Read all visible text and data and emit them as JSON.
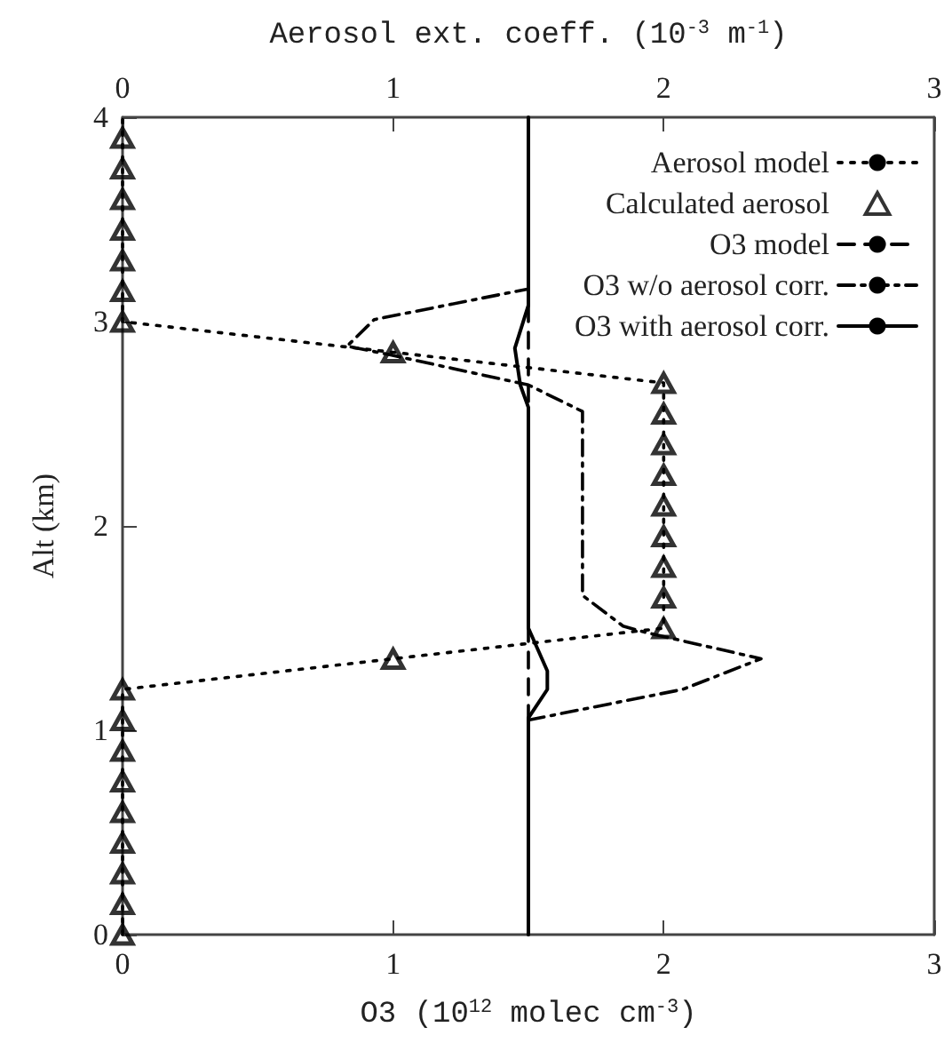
{
  "chart_data": {
    "type": "line",
    "xlabel": "O3 (10$^{12}$ molec cm$^{-3}$)",
    "x2label": "Aerosol ext. coeff. (10$^{-3}$ m$^{-1}$)",
    "ylabel": "Alt (km)",
    "xlim": [
      0,
      3
    ],
    "xticks": [
      0,
      1,
      2,
      3
    ],
    "x2lim": [
      0,
      3
    ],
    "x2ticks": [
      0,
      1,
      2,
      3
    ],
    "ylim": [
      0,
      4
    ],
    "yticks": [
      0,
      1,
      2,
      3,
      4
    ],
    "grid": false,
    "legend": "top right",
    "series": [
      {
        "name": "Aerosol model",
        "type": "line",
        "axis": "x2",
        "color": "#000000",
        "line_style": "dotted",
        "marker": "none",
        "x": [
          0,
          0,
          1,
          2,
          2,
          1,
          0,
          0
        ],
        "values": [
          0,
          1.2,
          1.35,
          1.5,
          2.7,
          2.85,
          3.0,
          4.0
        ]
      },
      {
        "name": "Calculated aerosol",
        "type": "scatter",
        "axis": "x2",
        "color": "#000000",
        "marker": "triangle",
        "x": [
          0,
          0,
          0,
          0,
          0,
          0,
          0,
          0,
          0,
          1,
          2,
          2,
          2,
          2,
          2,
          2,
          2,
          2,
          2,
          1,
          0,
          0,
          0,
          0,
          0,
          0,
          0
        ],
        "values": [
          0,
          0.15,
          0.3,
          0.45,
          0.6,
          0.75,
          0.9,
          1.05,
          1.2,
          1.35,
          1.5,
          1.65,
          1.8,
          1.95,
          2.1,
          2.25,
          2.4,
          2.55,
          2.7,
          2.85,
          3.0,
          3.15,
          3.3,
          3.45,
          3.6,
          3.75,
          3.9
        ]
      },
      {
        "name": "O3 model",
        "type": "line",
        "color": "#000000",
        "line_style": "dashed",
        "marker": "none",
        "x": [
          1.5,
          1.5
        ],
        "values": [
          0,
          4
        ]
      },
      {
        "name": "O3 w/o aerosol corr.",
        "type": "line",
        "color": "#000000",
        "line_style": "dashdot",
        "marker": "none",
        "x": [
          1.5,
          2.07,
          2.36,
          1.93,
          1.85,
          1.7,
          1.7,
          1.5,
          0.98,
          0.83,
          0.93,
          1.5
        ],
        "values": [
          1.05,
          1.2,
          1.35,
          1.48,
          1.51,
          1.66,
          2.56,
          2.69,
          2.84,
          2.88,
          3.01,
          3.16
        ]
      },
      {
        "name": "O3 with aerosol corr.",
        "type": "line",
        "color": "#000000",
        "line_style": "solid",
        "marker": "none",
        "x": [
          1.5,
          1.5,
          1.57,
          1.57,
          1.5,
          1.5,
          1.47,
          1.45,
          1.5,
          1.5
        ],
        "values": [
          0,
          1.06,
          1.2,
          1.29,
          1.5,
          2.58,
          2.69,
          2.87,
          3.08,
          4
        ]
      }
    ]
  }
}
